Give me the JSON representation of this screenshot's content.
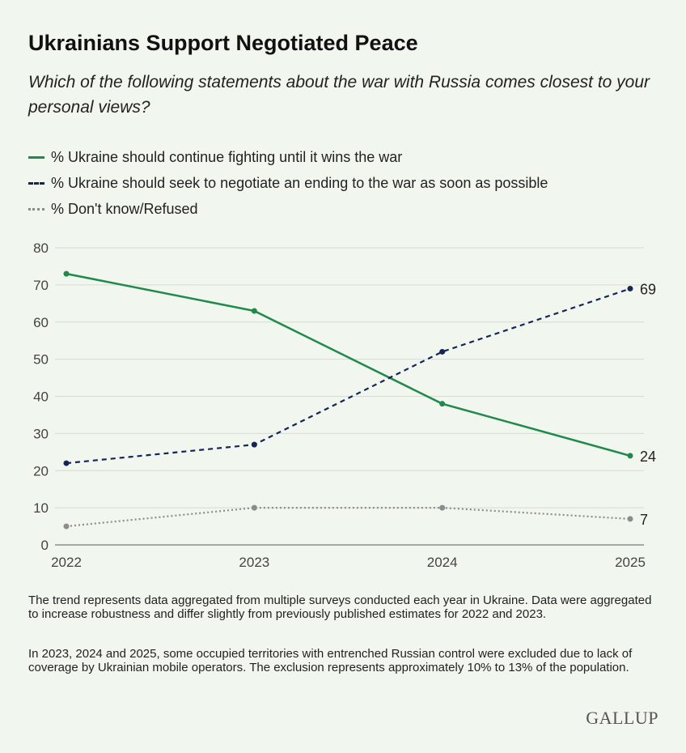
{
  "title": "Ukrainians Support Negotiated Peace",
  "subtitle": "Which of the following statements about the war with Russia comes closest to your personal views?",
  "legend": [
    {
      "label": "% Ukraine should continue fighting until it wins the war"
    },
    {
      "label": "% Ukraine should seek to negotiate an ending to the war as soon as possible"
    },
    {
      "label": "% Don't know/Refused"
    }
  ],
  "notes": [
    "The trend represents data aggregated from multiple surveys conducted each year in Ukraine. Data were aggregated to increase robustness and differ slightly from previously published estimates for 2022 and 2023.",
    "In 2023, 2024 and 2025, some occupied territories with entrenched Russian control were excluded due to lack of coverage by Ukrainian mobile operators. The exclusion represents approximately 10% to 13% of the population."
  ],
  "brand": "GALLUP",
  "chart_data": {
    "type": "line",
    "x": [
      "2022",
      "2023",
      "2024",
      "2025"
    ],
    "ylim": [
      0,
      80
    ],
    "yticks": [
      0,
      10,
      20,
      30,
      40,
      50,
      60,
      70,
      80
    ],
    "grid": true,
    "legend_position": "top-left",
    "series": [
      {
        "name": "% Ukraine should continue fighting until it wins the war",
        "values": [
          73,
          63,
          38,
          24
        ],
        "color": "#1f8a4c",
        "style": "solid",
        "end_label": "24"
      },
      {
        "name": "% Ukraine should seek to negotiate an ending to the war as soon as possible",
        "values": [
          22,
          27,
          52,
          69
        ],
        "color": "#162456",
        "style": "dashed",
        "end_label": "69"
      },
      {
        "name": "% Don't know/Refused",
        "values": [
          5,
          10,
          10,
          7
        ],
        "color": "#8c8c8c",
        "style": "dotted",
        "end_label": "7"
      }
    ]
  }
}
